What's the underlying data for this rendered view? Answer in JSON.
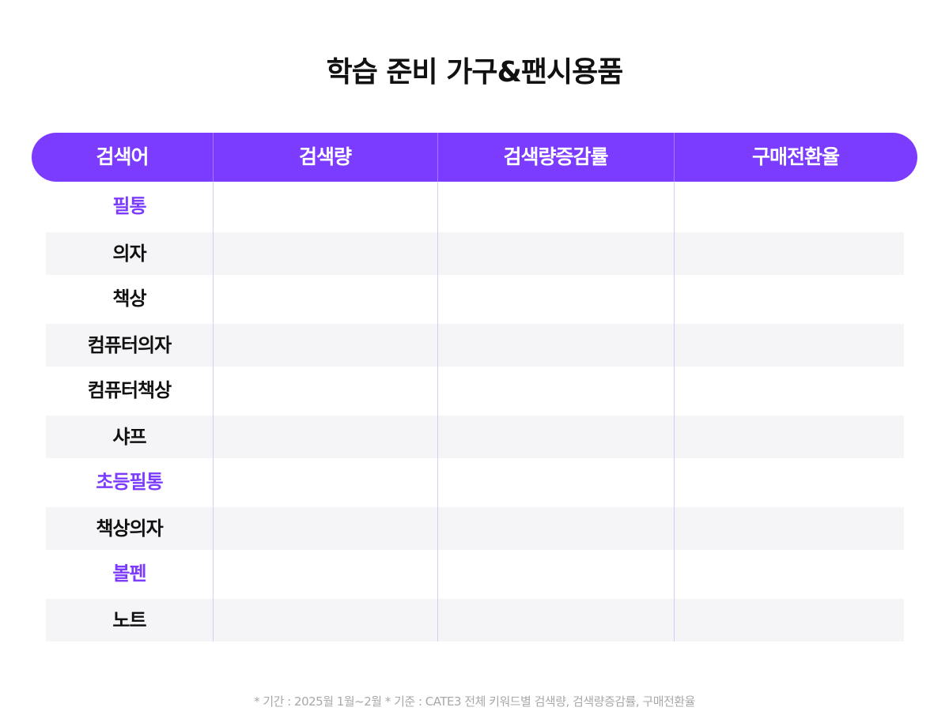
{
  "title": "학습 준비 가구&팬시용품",
  "table": {
    "headers": [
      "검색어",
      "검색량",
      "검색량증감률",
      "구매전환율"
    ],
    "rows": [
      {
        "keyword": "필통",
        "highlight": true
      },
      {
        "keyword": "의자",
        "highlight": false
      },
      {
        "keyword": "책상",
        "highlight": false
      },
      {
        "keyword": "컴퓨터의자",
        "highlight": false
      },
      {
        "keyword": "컴퓨터책상",
        "highlight": false
      },
      {
        "keyword": "샤프",
        "highlight": false
      },
      {
        "keyword": "초등필통",
        "highlight": true
      },
      {
        "keyword": "책상의자",
        "highlight": false
      },
      {
        "keyword": "볼펜",
        "highlight": true
      },
      {
        "keyword": "노트",
        "highlight": false
      }
    ]
  },
  "footnote": "* 기간 : 2025월 1월~2월 * 기준 : CATE3 전체 키워드별 검색량, 검색량증감률, 구매전환율",
  "colors": {
    "accent": "#7c3cff",
    "row_shade": "#f5f5f7",
    "text": "#111111",
    "footnote": "#a8a8a8"
  }
}
